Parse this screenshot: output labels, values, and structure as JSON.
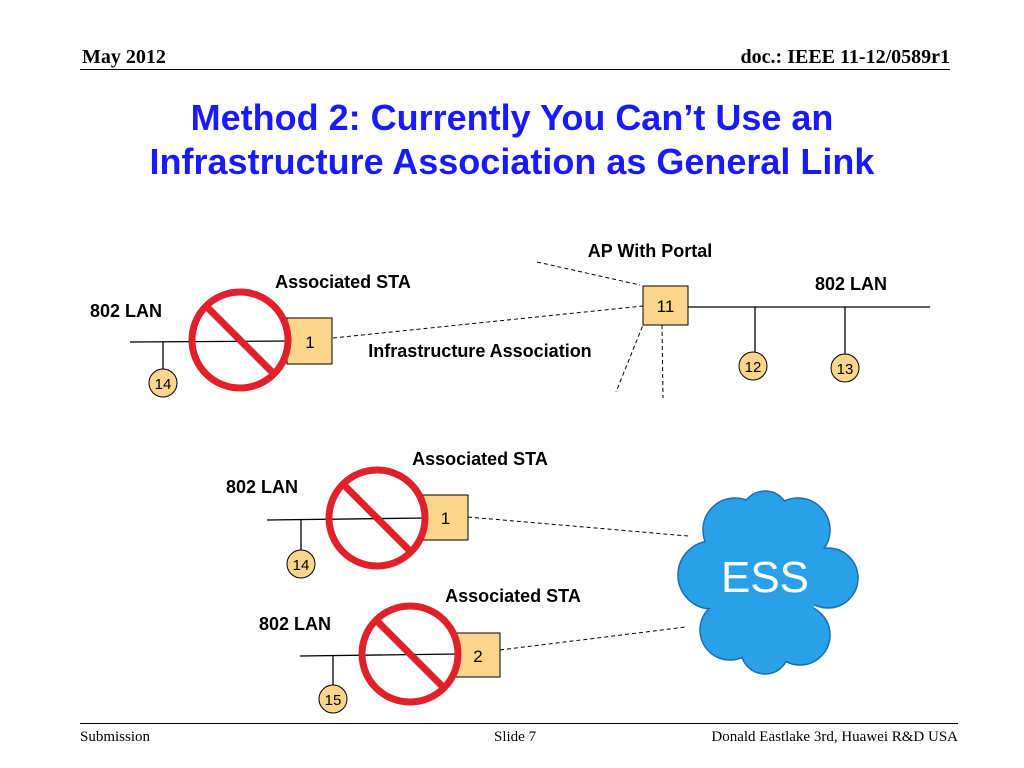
{
  "header": {
    "date": "May 2012",
    "doc": "doc.: IEEE 11-12/0589r1"
  },
  "title": {
    "line1": "Method 2: Currently You Can’t Use an",
    "line2": "Infrastructure Association as General Link"
  },
  "diagram": {
    "top": {
      "ap_label": "AP With Portal",
      "lan_right": "802 LAN",
      "lan_left": "802 LAN",
      "sta_label": "Associated STA",
      "assoc_label": "Infrastructure Association",
      "ap_box": "11",
      "sta_box": "1",
      "nodes": [
        "14",
        "12",
        "13"
      ]
    },
    "middle": {
      "sta_label": "Associated STA",
      "lan_label": "802 LAN",
      "sta_box": "1",
      "node": "14"
    },
    "bottom": {
      "sta_label": "Associated STA",
      "lan_label": "802 LAN",
      "sta_box": "2",
      "node": "15"
    },
    "cloud": "ESS"
  },
  "colors": {
    "title": "#1a1aff",
    "box": "#fcd58c",
    "prohibit": "#e0202a",
    "cloud": "#2aa0e8"
  },
  "footer": {
    "left": "Submission",
    "center": "Slide 7",
    "right": "Donald Eastlake 3rd, Huawei R&D USA"
  }
}
